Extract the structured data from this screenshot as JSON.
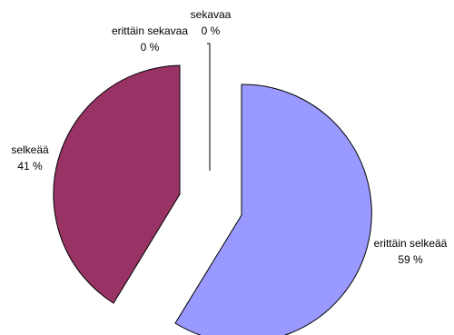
{
  "chart_data": {
    "type": "pie",
    "exploded": true,
    "categories": [
      "erittäin selkeää",
      "selkeää",
      "erittäin sekavaa",
      "sekavaa"
    ],
    "values": [
      59,
      41,
      0,
      0
    ],
    "value_labels": [
      "59 %",
      "41 %",
      "0 %",
      "0 %"
    ],
    "colors": [
      "#9999FF",
      "#993366",
      "#FFFFCC",
      "#CCFFFF"
    ],
    "edge_color": "#000000",
    "legend": "none"
  }
}
